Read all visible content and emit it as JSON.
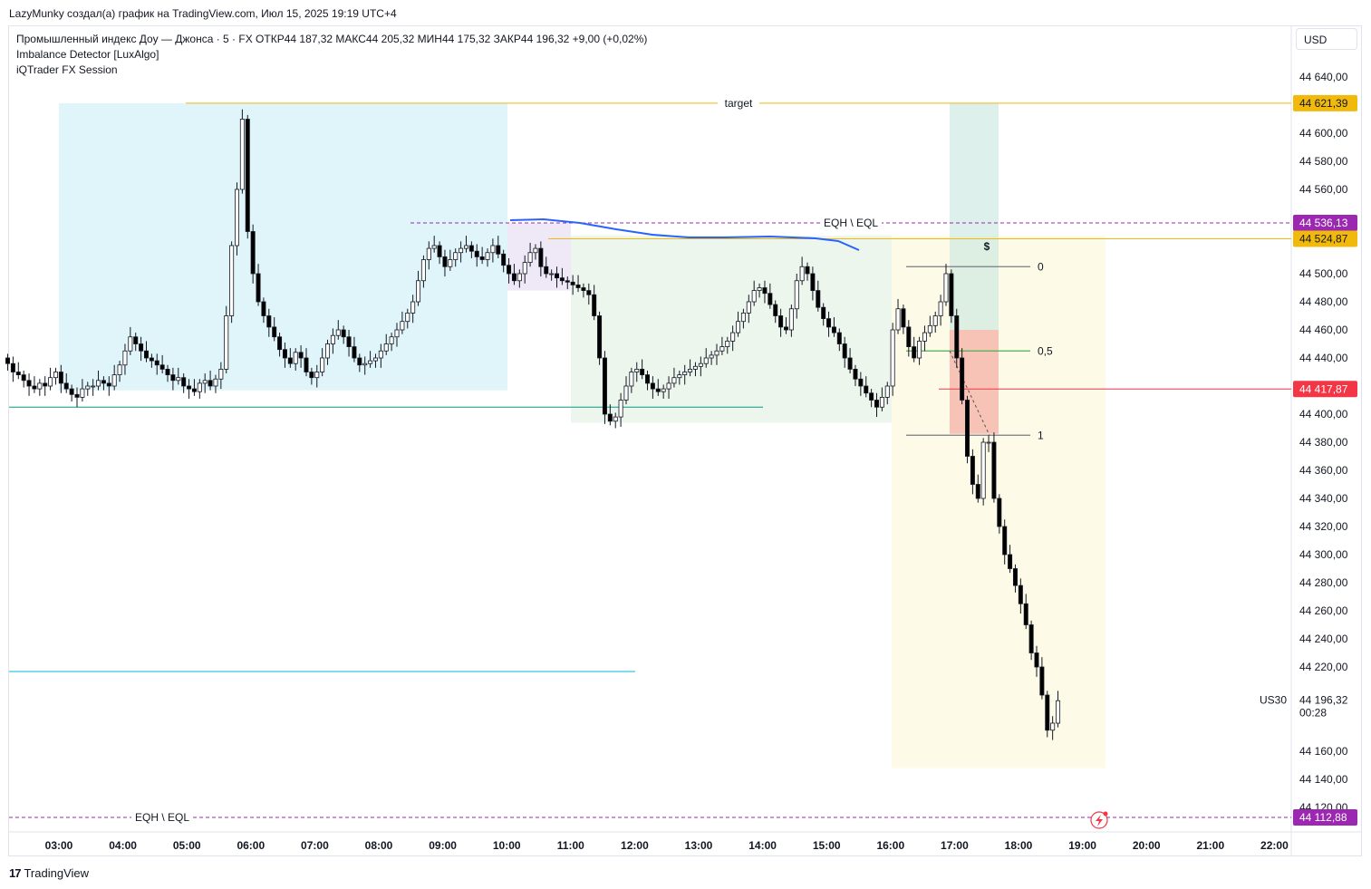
{
  "header": {
    "caption": "LazyMunky создал(а) график на TradingView.com, Июл 15, 2025 19:19 UTC+4"
  },
  "legend": {
    "symbol_line": "Промышленный индекс Доу — Джонса · 5 · FX  ОТКР44 187,32  МАКС44 205,32  МИН44 175,32  ЗАКР44 196,32  +9,00 (+0,02%)",
    "indicator_1": "Imbalance Detector [LuxAlgo]",
    "indicator_2": "iQTrader FX Session"
  },
  "currency_button": "USD",
  "footer": {
    "brand": "TradingView",
    "logo": "17"
  },
  "colors": {
    "up": "#ffffff",
    "down": "#000000",
    "wick": "#131722",
    "target_line": "#f0b90b",
    "eq_line": "#9c27b0",
    "fib_line": "#787b86",
    "fib_mid": "#4caf50",
    "red_line": "#f23645",
    "green_line": "#089981",
    "cyan_line": "#00bcd4",
    "blue_curve": "#2962ff"
  },
  "chart_data": {
    "type": "candlestick",
    "title": "",
    "symbol_tag": "US30",
    "x_ticks": [
      "03:00",
      "04:00",
      "05:00",
      "06:00",
      "07:00",
      "08:00",
      "09:00",
      "10:00",
      "11:00",
      "12:00",
      "13:00",
      "14:00",
      "15:00",
      "16:00",
      "17:00",
      "18:00",
      "19:00",
      "20:00",
      "21:00",
      "22:00"
    ],
    "y_ticks": [
      "44 640,00",
      "44 600,00",
      "44 580,00",
      "44 560,00",
      "44 500,00",
      "44 480,00",
      "44 460,00",
      "44 440,00",
      "44 400,00",
      "44 380,00",
      "44 360,00",
      "44 340,00",
      "44 320,00",
      "44 300,00",
      "44 280,00",
      "44 260,00",
      "44 240,00",
      "44 220,00",
      "44 160,00",
      "44 140,00",
      "44 120,00"
    ],
    "ylim": [
      44100,
      44650
    ],
    "price_tags": [
      {
        "label": "44 621,39",
        "value": 44621.39,
        "color": "#f0b90b",
        "text": "dark"
      },
      {
        "label": "44 536,13",
        "value": 44536.13,
        "color": "#9c27b0",
        "text": "light"
      },
      {
        "label": "44 524,87",
        "value": 44524.87,
        "color": "#f0b90b",
        "text": "dark"
      },
      {
        "label": "44 417,87",
        "value": 44417.87,
        "color": "#f23645",
        "text": "light"
      },
      {
        "label": "44 112,88",
        "value": 44112.88,
        "color": "#9c27b0",
        "text": "light"
      }
    ],
    "last_price": {
      "label": "44 196,32",
      "value": 44196.32,
      "countdown": "00:28"
    },
    "levels": {
      "target": {
        "label": "target",
        "value": 44621.39
      },
      "eqh_top": {
        "label": "EQH \\ EQL",
        "value": 44536.13
      },
      "eqh_bottom": {
        "label": "EQH \\ EQL",
        "value": 44112.88
      },
      "session_high": 44524.87,
      "green_low": 44405,
      "cyan_low": 44210
    },
    "fib": {
      "labels": [
        "0",
        "0,5",
        "1"
      ],
      "price_0": 44505,
      "price_1": 44385
    },
    "markers": {
      "dollar": "$"
    },
    "x_start_hour": 2.2,
    "bar_minutes": 5,
    "open": 44440,
    "candle_closes": [
      44436,
      44430,
      44428,
      44424,
      44420,
      44418,
      44422,
      44420,
      44426,
      44430,
      44422,
      44418,
      44414,
      44412,
      44418,
      44420,
      44420,
      44424,
      44422,
      44420,
      44428,
      44435,
      44445,
      44455,
      44450,
      44445,
      44440,
      44438,
      44435,
      44432,
      44428,
      44424,
      44426,
      44420,
      44418,
      44416,
      44422,
      44424,
      44420,
      44425,
      44432,
      44470,
      44520,
      44560,
      44610,
      44530,
      44500,
      44480,
      44470,
      44462,
      44455,
      44446,
      44440,
      44436,
      44444,
      44440,
      44430,
      44426,
      44430,
      44440,
      44450,
      44456,
      44460,
      44455,
      44448,
      44440,
      44435,
      44436,
      44438,
      44440,
      44445,
      44450,
      44455,
      44460,
      44466,
      44472,
      44480,
      44495,
      44510,
      44518,
      44520,
      44512,
      44505,
      44510,
      44515,
      44518,
      44520,
      44516,
      44512,
      44510,
      44515,
      44520,
      44514,
      44506,
      44500,
      44495,
      44500,
      44508,
      44515,
      44518,
      44505,
      44500,
      44500,
      44497,
      44495,
      44494,
      44492,
      44490,
      44488,
      44485,
      44470,
      44440,
      44400,
      44395,
      44398,
      44410,
      44420,
      44430,
      44432,
      44428,
      44422,
      44418,
      44416,
      44418,
      44422,
      44426,
      44428,
      44430,
      44432,
      44434,
      44436,
      44440,
      44442,
      44445,
      44448,
      44452,
      44458,
      44466,
      44472,
      44480,
      44488,
      44490,
      44486,
      44478,
      44470,
      44462,
      44460,
      44475,
      44495,
      44505,
      44500,
      44488,
      44476,
      44468,
      44462,
      44458,
      44450,
      44440,
      44432,
      44425,
      44420,
      44415,
      44410,
      44405,
      44412,
      44420,
      44460,
      44475,
      44462,
      44448,
      44440,
      44452,
      44458,
      44463,
      44470,
      44480,
      44500,
      44470,
      44440,
      44410,
      44370,
      44350,
      44340,
      44380,
      44380,
      44340,
      44320,
      44300,
      44290,
      44278,
      44265,
      44250,
      44230,
      44220,
      44200,
      44175,
      44180,
      44196
    ]
  }
}
